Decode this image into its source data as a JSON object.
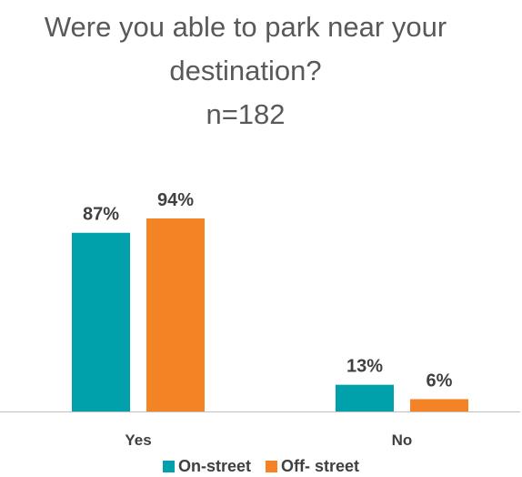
{
  "colors": {
    "on_street": "#00A1AB",
    "off_street": "#F38324",
    "text": "#404040",
    "title": "#595959",
    "axis": "#BFBFBF"
  },
  "chart_data": {
    "type": "bar",
    "title_lines": [
      "Were you able to park near your",
      "destination?",
      "n=182"
    ],
    "categories": [
      "Yes",
      "No"
    ],
    "series": [
      {
        "name": "On-street",
        "values": [
          87,
          13
        ],
        "labels": [
          "87%",
          "13%"
        ]
      },
      {
        "name": "Off- street",
        "values": [
          94,
          6
        ],
        "labels": [
          "94%",
          "6%"
        ]
      }
    ],
    "unit": "%",
    "ylim": [
      0,
      100
    ],
    "grid": false,
    "legend_position": "bottom"
  }
}
